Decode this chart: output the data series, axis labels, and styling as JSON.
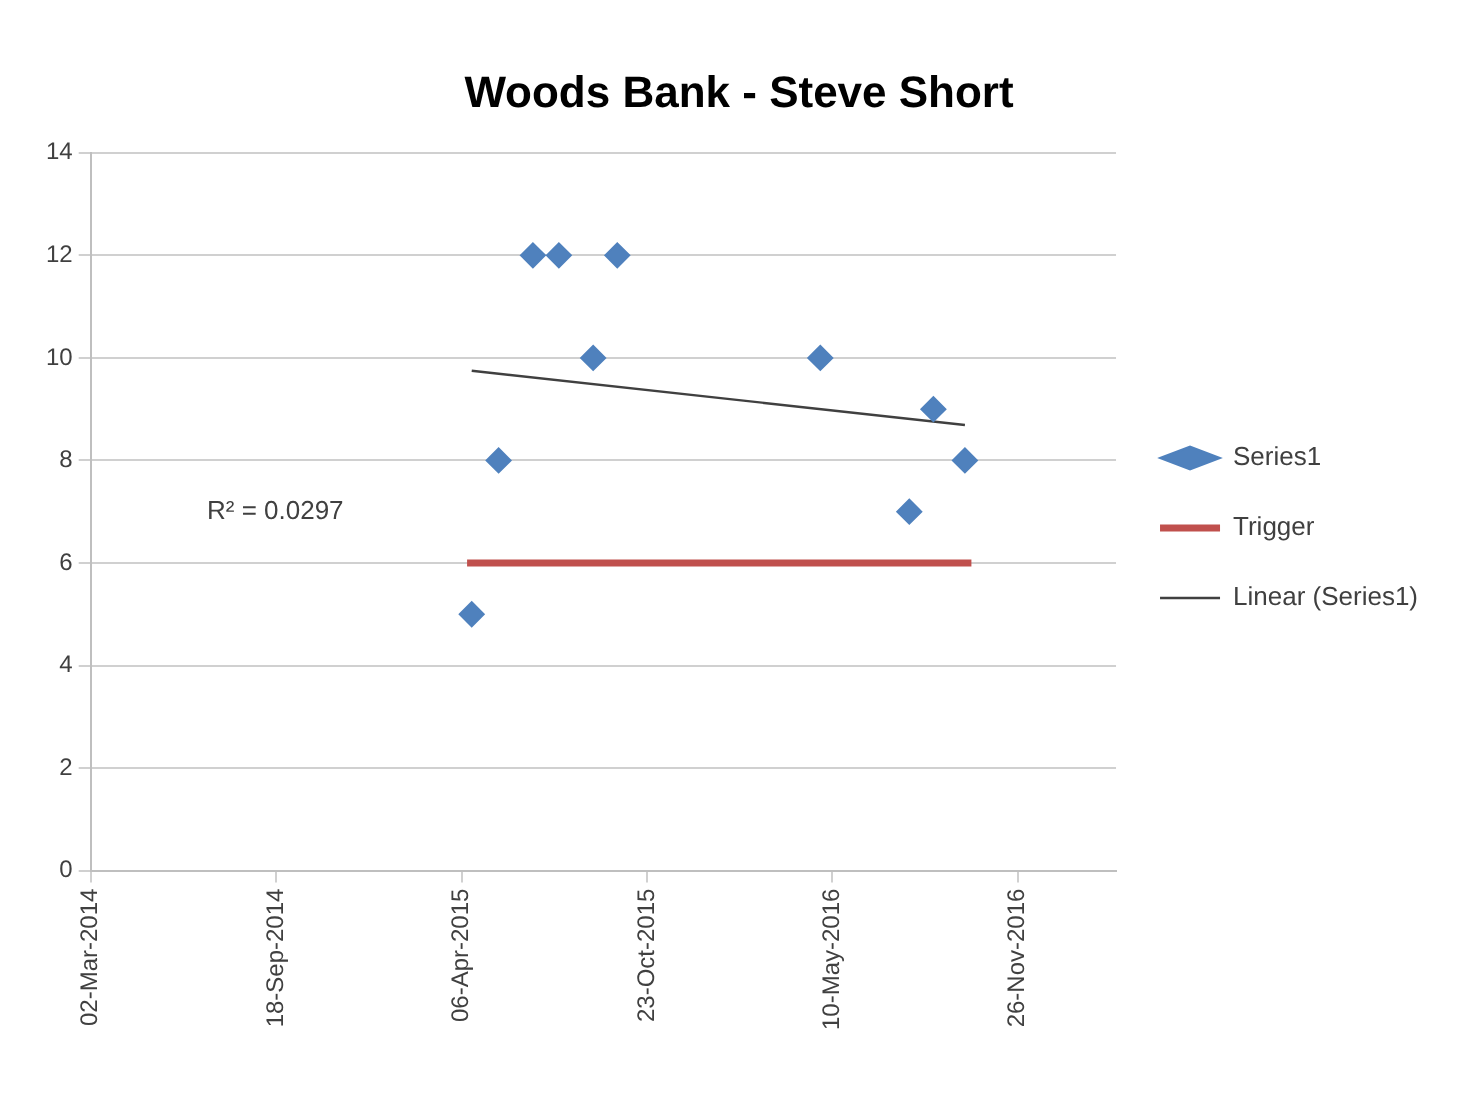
{
  "chart_data": {
    "type": "scatter",
    "title": "Woods Bank - Steve Short",
    "xlim": [
      "2014-03-02",
      "2017-03-12"
    ],
    "xticks": [
      {
        "value": "2014-03-02",
        "label": "02-Mar-2014"
      },
      {
        "value": "2014-09-18",
        "label": "18-Sep-2014"
      },
      {
        "value": "2015-04-06",
        "label": "06-Apr-2015"
      },
      {
        "value": "2015-10-23",
        "label": "23-Oct-2015"
      },
      {
        "value": "2016-05-10",
        "label": "10-May-2016"
      },
      {
        "value": "2016-11-26",
        "label": "26-Nov-2016"
      }
    ],
    "ylim": [
      0,
      14
    ],
    "yticks": [
      0,
      2,
      4,
      6,
      8,
      10,
      12,
      14
    ],
    "grid": "y",
    "legend": "right",
    "marker": "diamond",
    "series": [
      {
        "name": "Series1",
        "color": "#4f81bd",
        "x": [
          "2015-04-17",
          "2015-05-16",
          "2015-06-22",
          "2015-07-20",
          "2015-08-26",
          "2015-09-21",
          "2016-04-27",
          "2016-08-01",
          "2016-08-27",
          "2016-09-30"
        ],
        "values": [
          5,
          8,
          12,
          12,
          10,
          12,
          10,
          7,
          9,
          8
        ]
      },
      {
        "name": "Trigger",
        "type": "line",
        "color": "#c0504d",
        "marker": "none",
        "x": [
          "2015-04-12",
          "2016-10-07"
        ],
        "values": [
          6,
          6
        ]
      },
      {
        "name": "Linear (Series1)",
        "type": "line",
        "color": "#404040",
        "marker": "none",
        "x": [
          "2015-04-17",
          "2016-09-30"
        ],
        "values": [
          9.75,
          8.69
        ]
      }
    ],
    "annotations": [
      "R² = 0.0297"
    ]
  }
}
